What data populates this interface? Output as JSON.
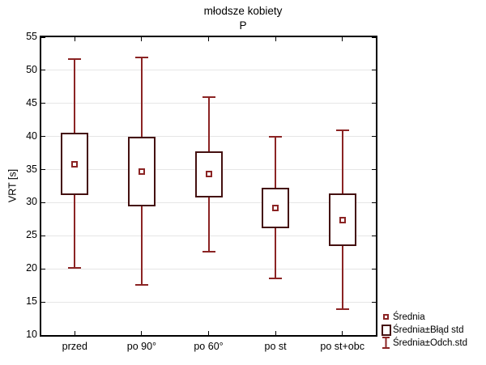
{
  "header": {
    "title": "młodsze kobiety",
    "subtitle": "P"
  },
  "legend": {
    "items": [
      {
        "label": "Średnia",
        "marker": "mean-square-icon"
      },
      {
        "label": "Średnia±Błąd std",
        "marker": "stderr-box-icon"
      },
      {
        "label": "Średnia±Odch.std",
        "marker": "stddev-whisker-icon"
      }
    ]
  },
  "colors": {
    "box_border": "#441010",
    "whisker": "#8b2424",
    "mean_marker": "#8b2424",
    "grid": "#e6e6e6",
    "axis": "#000000",
    "background": "#ffffff"
  },
  "chart_data": {
    "type": "box",
    "title": "młodsze kobiety",
    "subtitle": "P",
    "xlabel": "",
    "ylabel": "VRT [s]",
    "ylim": [
      10,
      55
    ],
    "ytick_step": 5,
    "grid": "horizontal",
    "legend_position": "bottom-right",
    "categories": [
      "przed",
      "po 90°",
      "po 60°",
      "po st",
      "po st+obc"
    ],
    "series": [
      {
        "name": "przed",
        "mean": 35.8,
        "se_low": 31.1,
        "se_high": 40.6,
        "sd_low": 20.1,
        "sd_high": 51.7
      },
      {
        "name": "po 90°",
        "mean": 34.7,
        "se_low": 29.5,
        "se_high": 39.9,
        "sd_low": 17.6,
        "sd_high": 51.9
      },
      {
        "name": "po 60°",
        "mean": 34.3,
        "se_low": 30.8,
        "se_high": 37.8,
        "sd_low": 22.6,
        "sd_high": 45.9
      },
      {
        "name": "po st",
        "mean": 29.2,
        "se_low": 26.1,
        "se_high": 32.3,
        "sd_low": 18.6,
        "sd_high": 39.9
      },
      {
        "name": "po st+obc",
        "mean": 27.4,
        "se_low": 23.4,
        "se_high": 31.4,
        "sd_low": 13.9,
        "sd_high": 40.9
      }
    ]
  }
}
